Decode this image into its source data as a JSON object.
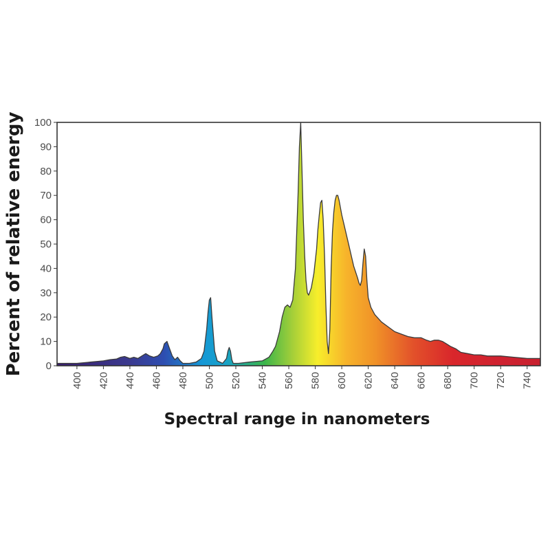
{
  "chart_data": {
    "type": "area",
    "title": "",
    "xlabel": "Spectral range in nanometers",
    "ylabel": "Percent of relative energy",
    "xlim": [
      385,
      750
    ],
    "ylim": [
      0,
      100
    ],
    "x_ticks": [
      400,
      420,
      440,
      460,
      480,
      500,
      520,
      540,
      560,
      580,
      600,
      620,
      640,
      660,
      680,
      700,
      720,
      740
    ],
    "y_ticks": [
      0,
      10,
      20,
      30,
      40,
      50,
      60,
      70,
      80,
      90,
      100
    ],
    "grid": false,
    "fill": "visible-spectrum gradient",
    "series": [
      {
        "x": [
          385,
          400,
          410,
          420,
          425,
          430,
          433,
          436,
          440,
          443,
          446,
          449,
          452,
          455,
          458,
          461,
          463,
          465,
          466,
          468,
          470,
          472,
          474,
          476,
          478,
          480,
          485,
          490,
          494,
          496,
          498,
          499,
          500,
          501,
          502,
          504,
          506,
          510,
          513,
          514,
          515,
          516,
          517,
          518,
          522,
          530,
          540,
          545,
          548,
          550,
          553,
          555,
          557,
          559,
          561,
          563,
          565,
          567,
          568,
          569,
          570,
          571,
          572,
          573,
          574,
          575,
          577,
          579,
          581,
          582,
          583,
          584,
          585,
          586,
          587,
          588,
          589,
          590,
          591,
          592,
          593,
          594,
          595,
          596,
          597,
          598,
          600,
          603,
          606,
          609,
          612,
          613,
          614,
          615,
          616,
          617,
          618,
          619,
          620,
          622,
          625,
          630,
          635,
          640,
          645,
          650,
          655,
          660,
          664,
          667,
          670,
          673,
          676,
          679,
          682,
          686,
          690,
          695,
          700,
          705,
          710,
          720,
          730,
          740,
          750
        ],
        "y": [
          1,
          1,
          1.5,
          2,
          2.5,
          2.8,
          3.5,
          3.8,
          3,
          3.5,
          3,
          4,
          5,
          4,
          3.5,
          4,
          5,
          7,
          9,
          10,
          7,
          4,
          2.5,
          3.5,
          2,
          1,
          1,
          1.5,
          3,
          6,
          15,
          22,
          27,
          28,
          20,
          6,
          2,
          1,
          3,
          6,
          7.5,
          6,
          2.5,
          1,
          1,
          1.5,
          2,
          3.5,
          6,
          8,
          14,
          20,
          24,
          25,
          24,
          27,
          40,
          70,
          90,
          100,
          80,
          60,
          45,
          35,
          30,
          29,
          32,
          38,
          48,
          56,
          62,
          67,
          68,
          60,
          45,
          25,
          10,
          5,
          15,
          40,
          55,
          63,
          68,
          70,
          70,
          68,
          62,
          55,
          48,
          41,
          36,
          34,
          33,
          35,
          42,
          48,
          45,
          35,
          28,
          24,
          21,
          18,
          16,
          14,
          13,
          12,
          11.5,
          11.5,
          10.5,
          10,
          10.5,
          10.5,
          10,
          9,
          8,
          7,
          5.5,
          5,
          4.5,
          4.5,
          4,
          4,
          3.5,
          3,
          3
        ]
      }
    ]
  }
}
